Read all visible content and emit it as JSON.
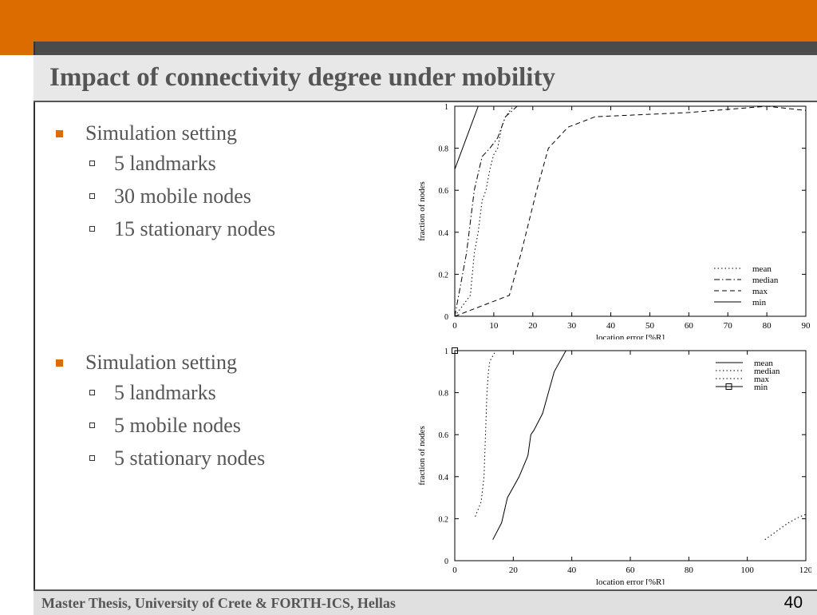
{
  "slide": {
    "title": "Impact of connectivity degree under mobility",
    "footer": "Master Thesis, University of Crete & FORTH-ICS, Hellas",
    "page_number": "40",
    "accent_color": "#dd6c00"
  },
  "settings": [
    {
      "heading": "Simulation setting",
      "items": [
        "5 landmarks",
        "30 mobile nodes",
        "15 stationary nodes"
      ]
    },
    {
      "heading": "Simulation setting",
      "items": [
        "5 landmarks",
        "5 mobile nodes",
        "5 stationary nodes"
      ]
    }
  ],
  "chart_data": [
    {
      "type": "line",
      "xlabel": "location error [%R]",
      "ylabel": "fraction of nodes",
      "xlim": [
        0,
        90
      ],
      "ylim": [
        0,
        1
      ],
      "xticks": [
        0,
        10,
        20,
        30,
        40,
        50,
        60,
        70,
        80,
        90
      ],
      "yticks": [
        0,
        0.2,
        0.4,
        0.6,
        0.8,
        1
      ],
      "legend_position": "bottom-right",
      "series": [
        {
          "name": "mean",
          "style": "dotted",
          "x": [
            0,
            4,
            5,
            6,
            7,
            8,
            9,
            10,
            11,
            12,
            13,
            15
          ],
          "y": [
            0,
            0.1,
            0.3,
            0.4,
            0.55,
            0.6,
            0.7,
            0.77,
            0.8,
            0.9,
            0.95,
            1.0
          ]
        },
        {
          "name": "median",
          "style": "dashdot",
          "x": [
            0,
            3,
            5,
            7,
            9,
            11,
            13,
            16
          ],
          "y": [
            0,
            0.3,
            0.6,
            0.76,
            0.8,
            0.85,
            0.95,
            1.0
          ]
        },
        {
          "name": "max",
          "style": "dashed",
          "x": [
            0,
            14,
            17,
            19,
            21,
            24,
            29,
            36,
            60,
            80,
            90
          ],
          "y": [
            0,
            0.1,
            0.3,
            0.45,
            0.6,
            0.8,
            0.9,
            0.95,
            0.97,
            1.0,
            0.98
          ]
        },
        {
          "name": "min",
          "style": "solid",
          "x": [
            0,
            4,
            6
          ],
          "y": [
            0.7,
            0.9,
            1.0
          ]
        }
      ]
    },
    {
      "type": "line",
      "xlabel": "location error [%R]",
      "ylabel": "fraction of nodes",
      "xlim": [
        0,
        120
      ],
      "ylim": [
        0,
        1
      ],
      "xticks": [
        0,
        20,
        40,
        60,
        80,
        100,
        120
      ],
      "yticks": [
        0,
        0.2,
        0.4,
        0.6,
        0.8,
        1
      ],
      "legend_position": "top-right",
      "series": [
        {
          "name": "mean",
          "style": "solid",
          "x": [
            13,
            16,
            18,
            22,
            25,
            26,
            27,
            30,
            34,
            38,
            39
          ],
          "y": [
            0.1,
            0.18,
            0.3,
            0.4,
            0.5,
            0.6,
            0.62,
            0.7,
            0.9,
            1.0,
            1.0
          ]
        },
        {
          "name": "median",
          "style": "dotted",
          "x": [
            7,
            9,
            10,
            10.5,
            11,
            11.5,
            12,
            14
          ],
          "y": [
            0.21,
            0.28,
            0.4,
            0.6,
            0.8,
            0.9,
            0.95,
            1.0
          ]
        },
        {
          "name": "max",
          "style": "dotted",
          "x": [
            106,
            110,
            114,
            118,
            120
          ],
          "y": [
            0.1,
            0.14,
            0.18,
            0.21,
            0.22
          ]
        },
        {
          "name": "min",
          "style": "square",
          "x": [
            0
          ],
          "y": [
            1
          ]
        }
      ]
    }
  ]
}
